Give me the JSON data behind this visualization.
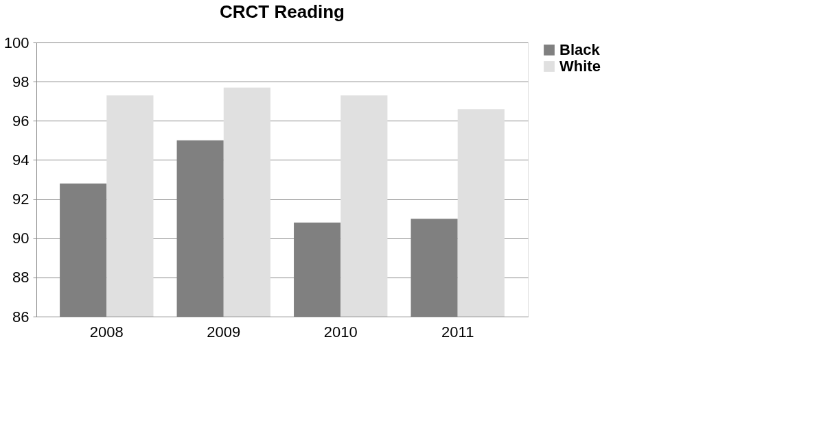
{
  "chart_data": {
    "type": "bar",
    "title": "CRCT Reading",
    "categories": [
      "2008",
      "2009",
      "2010",
      "2011"
    ],
    "series": [
      {
        "name": "Black",
        "color": "#808080",
        "values": [
          92.8,
          95.0,
          90.8,
          91.0
        ]
      },
      {
        "name": "White",
        "color": "#e0e0e0",
        "values": [
          97.3,
          97.7,
          97.3,
          96.6
        ]
      }
    ],
    "ylim": [
      86,
      100
    ],
    "yticks": [
      86,
      88,
      90,
      92,
      94,
      96,
      98,
      100
    ],
    "grid": "y",
    "legend": "right"
  }
}
